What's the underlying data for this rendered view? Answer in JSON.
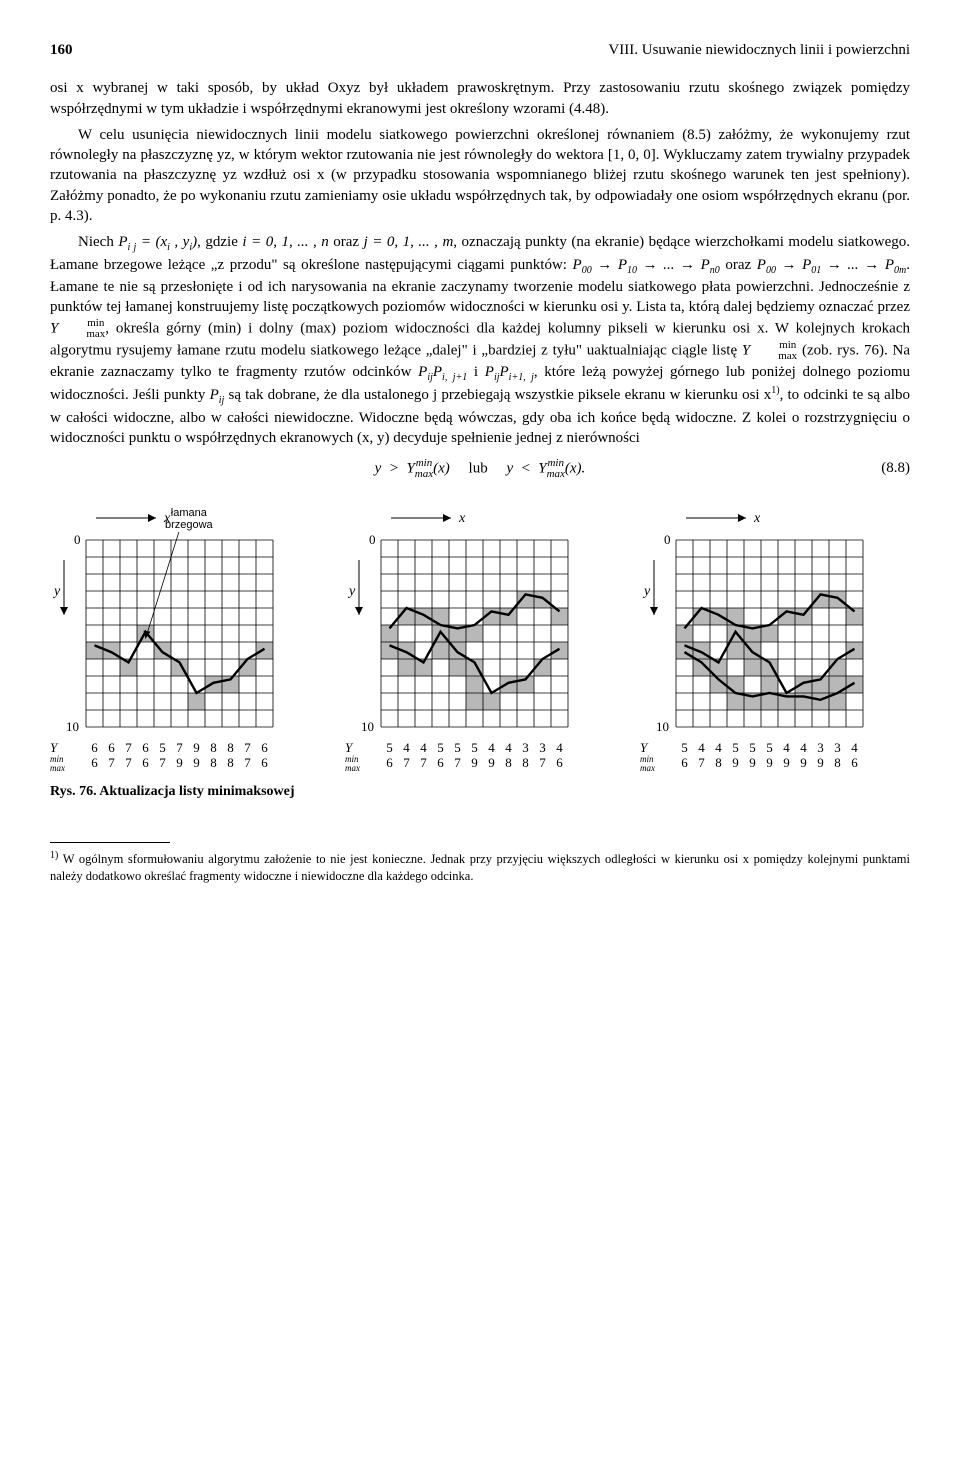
{
  "page_number": "160",
  "running_head": "VIII. Usuwanie niewidocznych linii i powierzchni",
  "para1": "osi x wybranej w taki sposób, by układ Oxyz był układem prawoskrętnym. Przy zastosowaniu rzutu skośnego związek pomiędzy współrzędnymi w tym układzie i współrzędnymi ekranowymi jest określony wzorami (4.48).",
  "para2": "W celu usunięcia niewidocznych linii modelu siatkowego powierzchni określonej równaniem (8.5) załóżmy, że wykonujemy rzut równoległy na płaszczyznę yz, w którym wektor rzutowania nie jest równoległy do wektora [1, 0, 0]. Wykluczamy zatem trywialny przypadek rzutowania na płaszczyznę yz wzdłuż osi x (w przypadku stosowania wspomnianego bliżej rzutu skośnego warunek ten jest spełniony). Załóżmy ponadto, że po wykonaniu rzutu zamieniamy osie układu współrzędnych tak, by odpowiadały one osiom współrzędnych ekranu (por. p. 4.3).",
  "para3a": "Niech ",
  "para3b": ", gdzie ",
  "para3c": " oraz ",
  "para3d": ", oznaczają punkty (na ekranie) będące wierzchołkami modelu siatkowego. Łamane brzegowe leżące „z przodu\" są określone następującymi ciągami punktów: ",
  "para3e": " oraz ",
  "para3f": ". Łamane te nie są przesłonięte i od ich narysowania na ekranie zaczynamy tworzenie modelu siatkowego płata powierzchni. Jednocześnie z punktów tej łamanej konstruujemy listę początkowych poziomów widoczności w kierunku osi y. Lista ta, którą dalej będziemy oznaczać przez ",
  "para3g": ", określa górny (min) i dolny (max) poziom widoczności dla każdej kolumny pikseli w kierunku osi x. W kolejnych krokach algorytmu rysujemy łamane rzutu modelu siatkowego leżące „dalej\" i „bardziej z tyłu\" uaktualniając ciągle listę ",
  "para3h": " (zob. rys. 76). Na ekranie zaznaczamy tylko te fragmenty rzutów odcinków ",
  "para3i": " i ",
  "para3j": ", które leżą powyżej górnego lub poniżej dolnego poziomu widoczności. Jeśli punkty ",
  "para3k": " są tak dobrane, że dla ustalonego j przebiegają wszystkie piksele ekranu w kierunku osi x",
  "para3l": ", to odcinki te są albo w całości widoczne, albo w całości niewidoczne. Widoczne będą wówczas, gdy oba ich końce będą widoczne. Z kolei o rozstrzygnięciu o widoczności punktu o współrzędnych ekranowych (x, y) decyduje spełnienie jednej z nierówności",
  "equation_num": "(8.8)",
  "fig_caption": "Rys. 76. Aktualizacja listy minimaksowej",
  "footnote": "W ogólnym sformułowaniu algorytmu założenie to nie jest konieczne. Jednak przy przyjęciu większych odległości w kierunku osi x pomiędzy kolejnymi punktami należy dodatkowo określać fragmenty widoczne i niewidoczne dla każdego odcinka.",
  "chart_label_x": "x",
  "chart_label_y": "y",
  "chart_label_0": "0",
  "chart_label_10": "10",
  "brzegowa_label": "łamana\nbrzegowa",
  "ylabel_min": "min",
  "ylabel_max": "max",
  "ylabel_Y": "Y",
  "charts": {
    "grid": {
      "cols": 11,
      "rows": 11,
      "cell": 17,
      "stroke": "#000000",
      "fill_shaded": "#b8b8b8"
    },
    "panels": [
      {
        "shaded": [
          [
            0,
            6
          ],
          [
            1,
            6
          ],
          [
            2,
            7
          ],
          [
            3,
            5
          ],
          [
            4,
            6
          ],
          [
            5,
            7
          ],
          [
            6,
            9
          ],
          [
            7,
            8
          ],
          [
            8,
            8
          ],
          [
            9,
            7
          ],
          [
            10,
            6
          ]
        ],
        "poly1": [
          [
            0,
            6.2
          ],
          [
            1,
            6.6
          ],
          [
            2,
            7.2
          ],
          [
            3,
            5.4
          ],
          [
            4,
            6.6
          ],
          [
            5,
            7.2
          ],
          [
            6,
            9.0
          ],
          [
            7,
            8.4
          ],
          [
            8,
            8.2
          ],
          [
            9,
            7.0
          ],
          [
            10,
            6.4
          ]
        ],
        "poly2": null,
        "min": [
          6,
          6,
          7,
          6,
          5,
          7,
          9,
          8,
          8,
          7,
          6
        ],
        "max": [
          6,
          7,
          7,
          6,
          7,
          9,
          9,
          8,
          8,
          7,
          6
        ]
      },
      {
        "shaded": [
          [
            0,
            6
          ],
          [
            1,
            6
          ],
          [
            1,
            7
          ],
          [
            2,
            7
          ],
          [
            3,
            5
          ],
          [
            3,
            6
          ],
          [
            4,
            6
          ],
          [
            4,
            7
          ],
          [
            5,
            7
          ],
          [
            5,
            8
          ],
          [
            5,
            9
          ],
          [
            6,
            9
          ],
          [
            7,
            8
          ],
          [
            8,
            8
          ],
          [
            9,
            7
          ],
          [
            10,
            6
          ],
          [
            0,
            5
          ],
          [
            1,
            4
          ],
          [
            2,
            4
          ],
          [
            3,
            4
          ],
          [
            4,
            5
          ],
          [
            5,
            5
          ],
          [
            6,
            4
          ],
          [
            7,
            4
          ],
          [
            8,
            3
          ],
          [
            9,
            3
          ],
          [
            10,
            4
          ]
        ],
        "poly1": [
          [
            0,
            6.2
          ],
          [
            1,
            6.6
          ],
          [
            2,
            7.2
          ],
          [
            3,
            5.4
          ],
          [
            4,
            6.6
          ],
          [
            5,
            7.2
          ],
          [
            6,
            9.0
          ],
          [
            7,
            8.4
          ],
          [
            8,
            8.2
          ],
          [
            9,
            7.0
          ],
          [
            10,
            6.4
          ]
        ],
        "poly2": [
          [
            0,
            5.2
          ],
          [
            1,
            4.0
          ],
          [
            2,
            4.4
          ],
          [
            3,
            5.0
          ],
          [
            4,
            5.2
          ],
          [
            5,
            5.0
          ],
          [
            6,
            4.2
          ],
          [
            7,
            4.4
          ],
          [
            8,
            3.2
          ],
          [
            9,
            3.4
          ],
          [
            10,
            4.2
          ]
        ],
        "min": [
          5,
          4,
          4,
          5,
          5,
          5,
          4,
          4,
          3,
          3,
          4
        ],
        "max": [
          6,
          7,
          7,
          6,
          7,
          9,
          9,
          8,
          8,
          7,
          6
        ]
      },
      {
        "shaded": [
          [
            0,
            6
          ],
          [
            1,
            6
          ],
          [
            1,
            7
          ],
          [
            2,
            7
          ],
          [
            2,
            8
          ],
          [
            3,
            5
          ],
          [
            3,
            6
          ],
          [
            3,
            8
          ],
          [
            3,
            9
          ],
          [
            4,
            6
          ],
          [
            4,
            7
          ],
          [
            4,
            9
          ],
          [
            5,
            7
          ],
          [
            5,
            8
          ],
          [
            5,
            9
          ],
          [
            6,
            9
          ],
          [
            7,
            8
          ],
          [
            7,
            9
          ],
          [
            8,
            8
          ],
          [
            8,
            9
          ],
          [
            9,
            7
          ],
          [
            9,
            8
          ],
          [
            9,
            9
          ],
          [
            10,
            6
          ],
          [
            10,
            8
          ],
          [
            0,
            5
          ],
          [
            1,
            4
          ],
          [
            2,
            4
          ],
          [
            3,
            4
          ],
          [
            4,
            5
          ],
          [
            5,
            5
          ],
          [
            6,
            4
          ],
          [
            7,
            4
          ],
          [
            8,
            3
          ],
          [
            9,
            3
          ],
          [
            10,
            4
          ]
        ],
        "poly1": [
          [
            0,
            6.2
          ],
          [
            1,
            6.6
          ],
          [
            2,
            7.2
          ],
          [
            3,
            5.4
          ],
          [
            4,
            6.6
          ],
          [
            5,
            7.2
          ],
          [
            6,
            9.0
          ],
          [
            7,
            8.4
          ],
          [
            8,
            8.2
          ],
          [
            9,
            7.0
          ],
          [
            10,
            6.4
          ]
        ],
        "poly2": [
          [
            0,
            5.2
          ],
          [
            1,
            4.0
          ],
          [
            2,
            4.4
          ],
          [
            3,
            5.0
          ],
          [
            4,
            5.2
          ],
          [
            5,
            5.0
          ],
          [
            6,
            4.2
          ],
          [
            7,
            4.4
          ],
          [
            8,
            3.2
          ],
          [
            9,
            3.4
          ],
          [
            10,
            4.2
          ]
        ],
        "poly3": [
          [
            0,
            6.6
          ],
          [
            1,
            7.2
          ],
          [
            2,
            8.2
          ],
          [
            3,
            9.0
          ],
          [
            4,
            9.2
          ],
          [
            5,
            9.0
          ],
          [
            6,
            9.2
          ],
          [
            7,
            9.2
          ],
          [
            8,
            9.4
          ],
          [
            9,
            9.0
          ],
          [
            10,
            8.4
          ]
        ],
        "min": [
          5,
          4,
          4,
          5,
          5,
          5,
          4,
          4,
          3,
          3,
          4
        ],
        "max": [
          6,
          7,
          8,
          9,
          9,
          9,
          9,
          9,
          9,
          8,
          6
        ]
      }
    ]
  }
}
